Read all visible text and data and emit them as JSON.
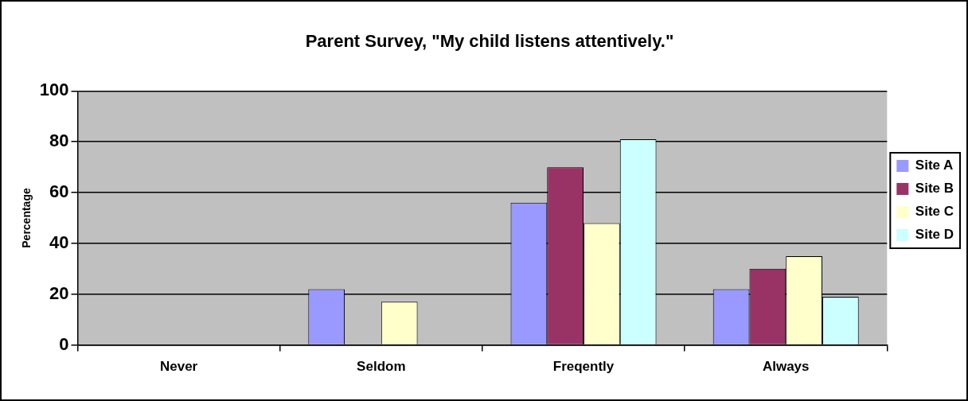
{
  "chart_data": {
    "type": "bar",
    "title": "Parent Survey, \"My child listens attentively.\"",
    "ylabel": "Percentage",
    "categories": [
      "Never",
      "Seldom",
      "Freqently",
      "Always"
    ],
    "series": [
      {
        "name": "Site A",
        "color": "#9999ff",
        "values": [
          0,
          22,
          56,
          22
        ]
      },
      {
        "name": "Site B",
        "color": "#993366",
        "values": [
          0,
          0,
          70,
          30
        ]
      },
      {
        "name": "Site C",
        "color": "#ffffcc",
        "values": [
          0,
          17,
          48,
          35
        ]
      },
      {
        "name": "Site D",
        "color": "#ccffff",
        "values": [
          0,
          0,
          81,
          19
        ]
      }
    ],
    "ylim": [
      0,
      100
    ],
    "yticks": [
      0,
      20,
      40,
      60,
      80,
      100
    ],
    "grid": "y",
    "legend": "right"
  }
}
